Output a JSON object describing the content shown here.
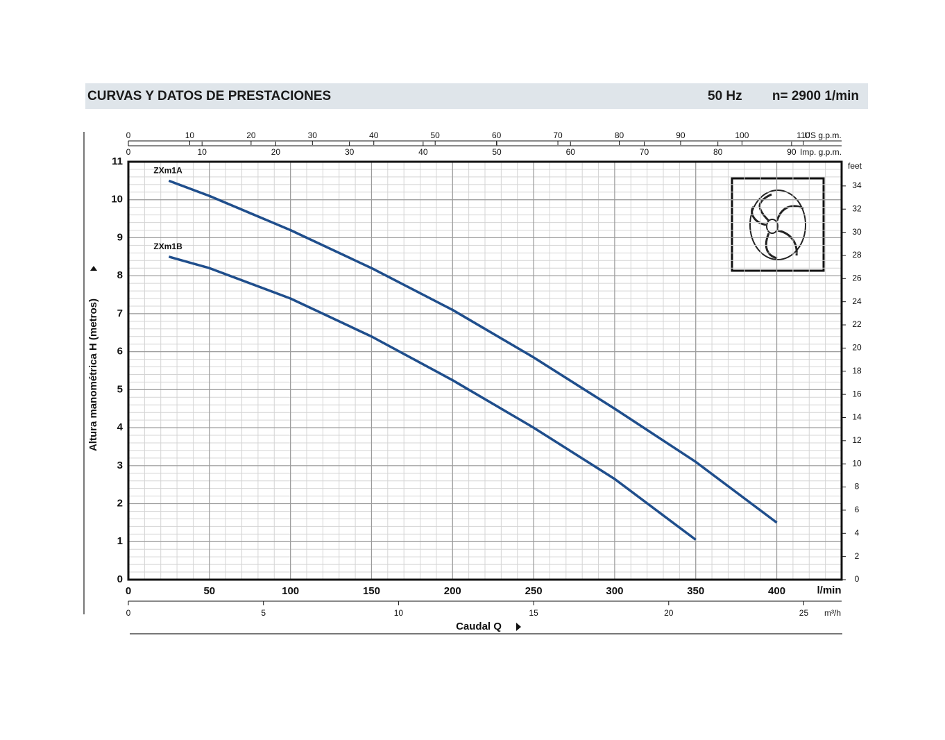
{
  "header": {
    "title": "CURVAS Y DATOS DE PRESTACIONES",
    "frequency": "50 Hz",
    "speed": "n= 2900  1/min"
  },
  "chart_data": {
    "type": "line",
    "xlabel": "Caudal Q",
    "x_unit": "l/min",
    "ylabel": "Altura manométrica  H  (metros)",
    "xlim": [
      0,
      440
    ],
    "xticks": [
      0,
      50,
      100,
      150,
      200,
      250,
      300,
      350,
      400
    ],
    "x_minor_step": 10,
    "ylim": [
      0,
      11
    ],
    "yticks": [
      0,
      1,
      2,
      3,
      4,
      5,
      6,
      7,
      8,
      9,
      10,
      11
    ],
    "y_minor_step": 0.2,
    "y2lim": [
      0,
      36.09
    ],
    "y2ticks": [
      0,
      2,
      4,
      6,
      8,
      10,
      12,
      14,
      16,
      18,
      20,
      22,
      24,
      26,
      28,
      30,
      32,
      34
    ],
    "y2_unit": "feet",
    "grid": true,
    "secondary_x_axes": [
      {
        "name": "US g.p.m.",
        "lim": [
          0,
          116.24
        ],
        "ticks": [
          0,
          10,
          20,
          30,
          40,
          50,
          60,
          70,
          80,
          90,
          100,
          110
        ]
      },
      {
        "name": "Imp. g.p.m.",
        "lim": [
          0,
          96.79
        ],
        "ticks": [
          0,
          10,
          20,
          30,
          40,
          50,
          60,
          70,
          80,
          90
        ]
      },
      {
        "name": "m³/h",
        "lim": [
          0,
          26.4
        ],
        "ticks": [
          0,
          5,
          10,
          15,
          20,
          25
        ]
      }
    ],
    "series": [
      {
        "name": "ZXm1A",
        "color": "#1f4e8c",
        "x": [
          25,
          50,
          100,
          150,
          200,
          250,
          300,
          350,
          400
        ],
        "values": [
          10.5,
          10.1,
          9.2,
          8.2,
          7.1,
          5.85,
          4.5,
          3.1,
          1.5
        ]
      },
      {
        "name": "ZXm1B",
        "color": "#1f4e8c",
        "x": [
          25,
          50,
          100,
          150,
          200,
          250,
          300,
          350
        ],
        "values": [
          8.5,
          8.2,
          7.4,
          6.4,
          5.25,
          4.0,
          2.65,
          1.05
        ]
      }
    ]
  }
}
